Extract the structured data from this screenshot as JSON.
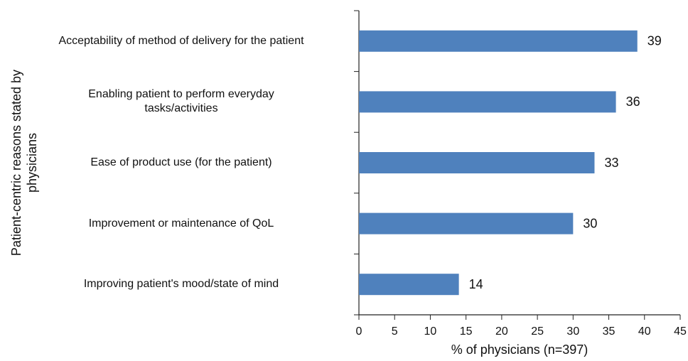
{
  "chart_data": {
    "type": "bar",
    "orientation": "horizontal",
    "y_label": "Patient-centric reasons stated by\nphysicians",
    "x_label": "% of physicians (n=397)",
    "categories": [
      "Acceptability of method of delivery for the patient",
      "Enabling patient to perform everyday\ntasks/activities",
      "Ease of product use (for the patient)",
      "Improvement or maintenance of QoL",
      "Improving patient's mood/state of mind"
    ],
    "values": [
      39,
      36,
      33,
      30,
      14
    ],
    "color": "#4f81bd",
    "xlim": [
      0,
      45
    ],
    "xticks": [
      0,
      5,
      10,
      15,
      20,
      25,
      30,
      35,
      40,
      45
    ],
    "grid": false
  }
}
